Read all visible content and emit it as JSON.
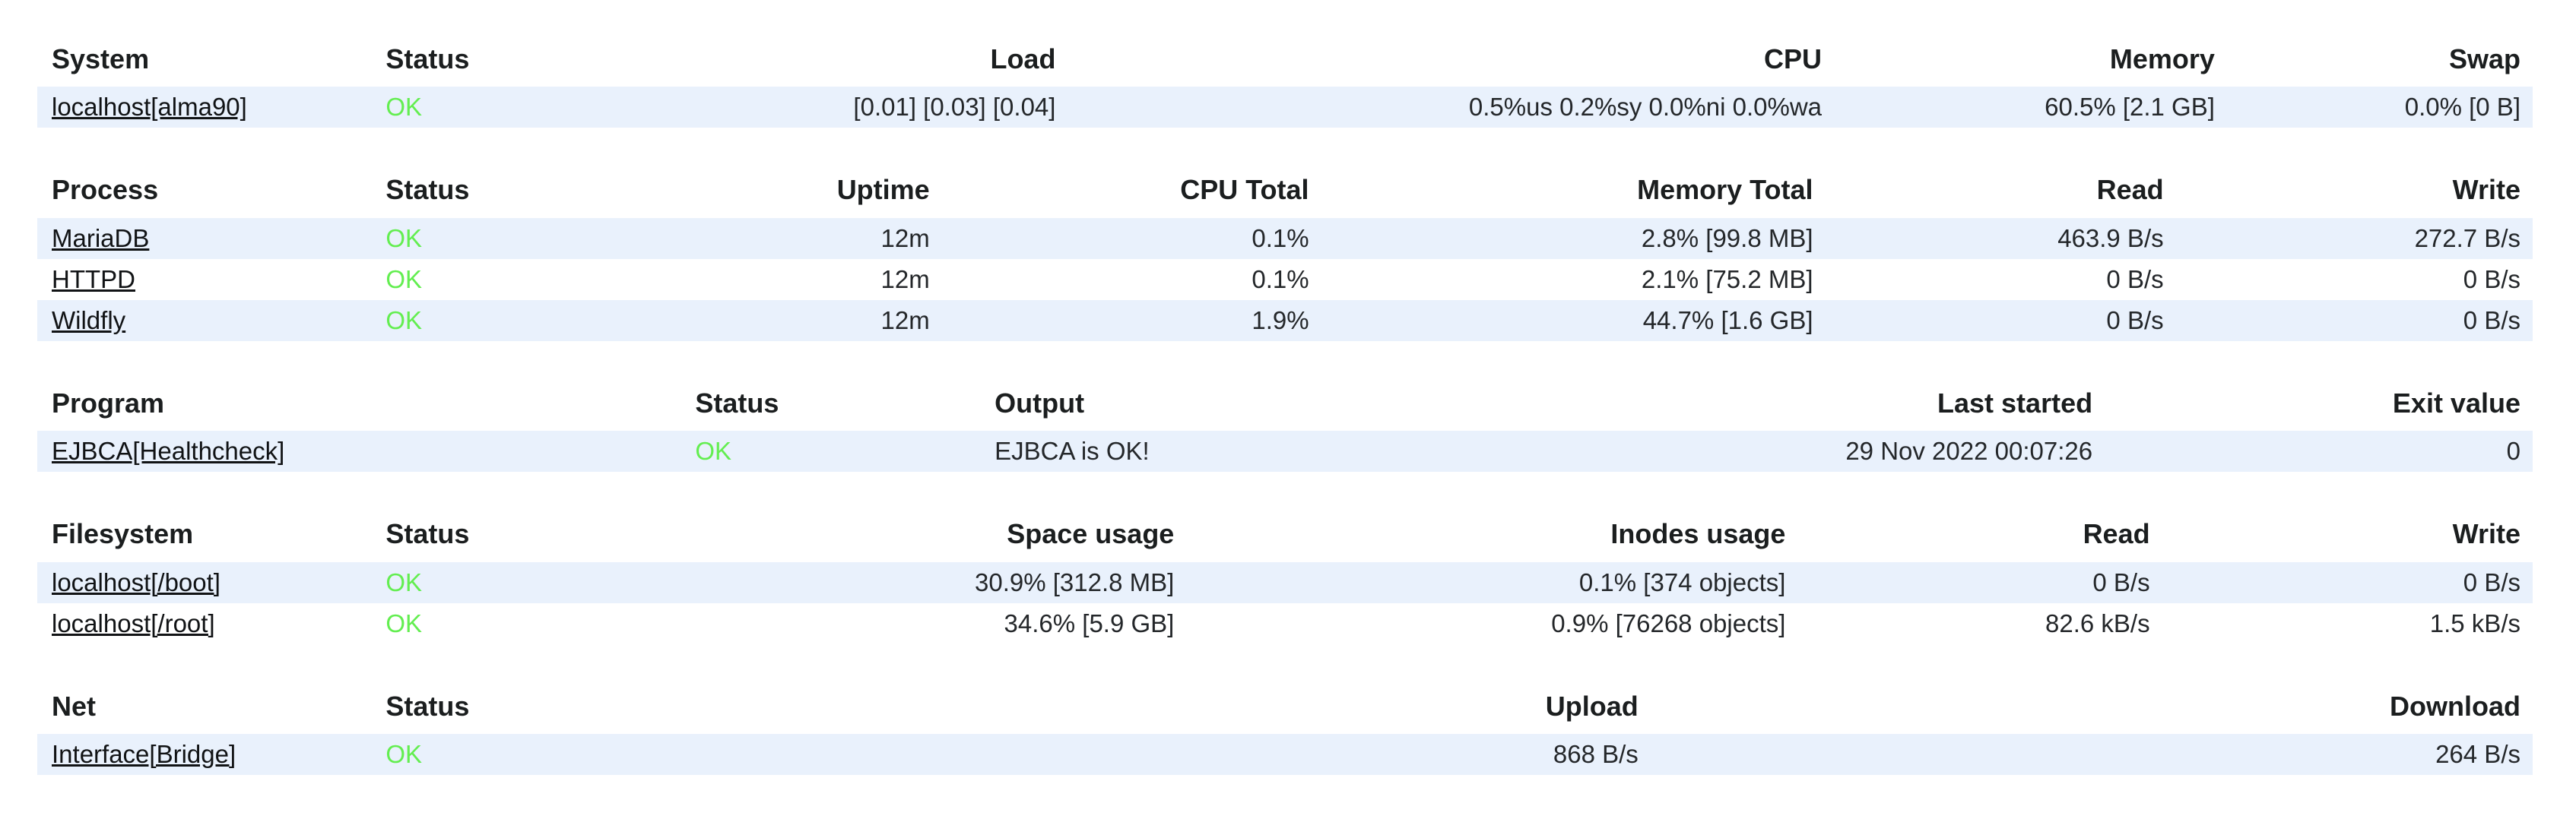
{
  "colors": {
    "status_ok": "#63ee50",
    "row_stripe": "#e9f1fc",
    "text": "#24272a",
    "page_background": "#ffffff"
  },
  "tables": [
    {
      "id": "system",
      "columns": [
        {
          "label": "System",
          "align": "left",
          "width": "13.6%",
          "type": "link"
        },
        {
          "label": "Status",
          "align": "left",
          "width": "8.4%",
          "type": "status"
        },
        {
          "label": "Load",
          "align": "right",
          "width": "19.3%",
          "type": "text"
        },
        {
          "label": "CPU",
          "align": "right",
          "width": "30.7%",
          "type": "text"
        },
        {
          "label": "Memory",
          "align": "right",
          "width": "15.75%",
          "type": "text"
        },
        {
          "label": "Swap",
          "align": "right",
          "width": "12.25%",
          "type": "text"
        }
      ],
      "rows": [
        [
          "localhost[alma90]",
          "OK",
          "[0.01] [0.03] [0.04]",
          "0.5%us 0.2%sy 0.0%ni 0.0%wa",
          "60.5% [2.1 GB]",
          "0.0% [0 B]"
        ]
      ]
    },
    {
      "id": "process",
      "columns": [
        {
          "label": "Process",
          "align": "left",
          "width": "13.6%",
          "type": "link"
        },
        {
          "label": "Status",
          "align": "left",
          "width": "8.4%",
          "type": "status"
        },
        {
          "label": "Uptime",
          "align": "right",
          "width": "14.25%",
          "type": "text"
        },
        {
          "label": "CPU Total",
          "align": "right",
          "width": "15.2%",
          "type": "text"
        },
        {
          "label": "Memory Total",
          "align": "right",
          "width": "20.2%",
          "type": "text"
        },
        {
          "label": "Read",
          "align": "right",
          "width": "14.05%",
          "type": "text"
        },
        {
          "label": "Write",
          "align": "right",
          "width": "14.3%",
          "type": "text"
        }
      ],
      "rows": [
        [
          "MariaDB",
          "OK",
          "12m",
          "0.1%",
          "2.8% [99.8 MB]",
          "463.9 B/s",
          "272.7 B/s"
        ],
        [
          "HTTPD",
          "OK",
          "12m",
          "0.1%",
          "2.1% [75.2 MB]",
          "0 B/s",
          "0 B/s"
        ],
        [
          "Wildfly",
          "OK",
          "12m",
          "1.9%",
          "44.7% [1.6 GB]",
          "0 B/s",
          "0 B/s"
        ]
      ]
    },
    {
      "id": "program",
      "columns": [
        {
          "label": "Program",
          "align": "left",
          "width": "26%",
          "type": "link"
        },
        {
          "label": "Status",
          "align": "left",
          "width": "12%",
          "type": "status"
        },
        {
          "label": "Output",
          "align": "left",
          "width": "20.4%",
          "type": "text"
        },
        {
          "label": "Last started",
          "align": "right",
          "width": "24.45%",
          "type": "text"
        },
        {
          "label": "Exit value",
          "align": "right",
          "width": "17.15%",
          "type": "text"
        }
      ],
      "rows": [
        [
          "EJBCA[Healthcheck]",
          "OK",
          "EJBCA is OK!",
          "29 Nov 2022 00:07:26",
          "0"
        ]
      ]
    },
    {
      "id": "filesystem",
      "columns": [
        {
          "label": "Filesystem",
          "align": "left",
          "width": "13.6%",
          "type": "link"
        },
        {
          "label": "Status",
          "align": "left",
          "width": "8.4%",
          "type": "status"
        },
        {
          "label": "Space usage",
          "align": "right",
          "width": "24.05%",
          "type": "text"
        },
        {
          "label": "Inodes usage",
          "align": "right",
          "width": "24.5%",
          "type": "text"
        },
        {
          "label": "Read",
          "align": "right",
          "width": "14.6%",
          "type": "text"
        },
        {
          "label": "Write",
          "align": "right",
          "width": "14.85%",
          "type": "text"
        }
      ],
      "rows": [
        [
          "localhost[/boot]",
          "OK",
          "30.9% [312.8 MB]",
          "0.1% [374 objects]",
          "0 B/s",
          "0 B/s"
        ],
        [
          "localhost[/root]",
          "OK",
          "34.6% [5.9 GB]",
          "0.9% [76268 objects]",
          "82.6 kB/s",
          "1.5 kB/s"
        ]
      ]
    },
    {
      "id": "net",
      "columns": [
        {
          "label": "Net",
          "align": "left",
          "width": "13.6%",
          "type": "link"
        },
        {
          "label": "Status",
          "align": "left",
          "width": "8.4%",
          "type": "status"
        },
        {
          "label": "Upload",
          "align": "right",
          "width": "42.65%",
          "type": "text"
        },
        {
          "label": "Download",
          "align": "right",
          "width": "35.35%",
          "type": "text"
        }
      ],
      "rows": [
        [
          "Interface[Bridge]",
          "OK",
          "868 B/s",
          "264 B/s"
        ]
      ]
    }
  ]
}
